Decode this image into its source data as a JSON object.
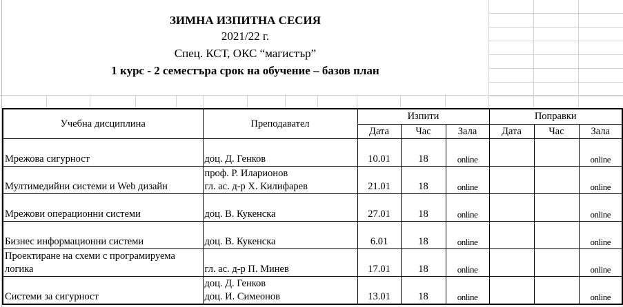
{
  "header": {
    "title": "ЗИМНА ИЗПИТНА СЕСИЯ",
    "year": "2021/22 г.",
    "specialty": "Спец. КСТ, ОКС “магистър”",
    "plan": "1 курс - 2 семестъра срок на обучение – базов план"
  },
  "table": {
    "columns": {
      "subject": "Учебна дисциплина",
      "teacher": "Преподавател",
      "exams": "Изпити",
      "retakes": "Поправки",
      "date": "Дата",
      "hour": "Час",
      "room": "Зала"
    },
    "rows": [
      {
        "subject": [
          "",
          "Мрежова сигурност"
        ],
        "teacher": [
          "",
          "доц. Д. Генков"
        ],
        "exam_date": "10.01",
        "exam_hour": "18",
        "exam_room": "online",
        "retake_date": "",
        "retake_hour": "",
        "retake_room": "online"
      },
      {
        "subject": [
          "",
          "Мултимедийни системи и Web дизайн"
        ],
        "teacher": [
          "проф. Р. Иларионов",
          "гл. ас. д-р Х. Килифарев"
        ],
        "exam_date": "21.01",
        "exam_hour": "18",
        "exam_room": "online",
        "retake_date": "",
        "retake_hour": "",
        "retake_room": "online"
      },
      {
        "subject": [
          "",
          "Мрежови операционни системи"
        ],
        "teacher": [
          "",
          "доц. В. Кукенска"
        ],
        "exam_date": "27.01",
        "exam_hour": "18",
        "exam_room": "online",
        "retake_date": "",
        "retake_hour": "",
        "retake_room": "online"
      },
      {
        "subject": [
          "",
          "Бизнес информационни системи"
        ],
        "teacher": [
          "",
          "доц. В. Кукенска"
        ],
        "exam_date": "6.01",
        "exam_hour": "18",
        "exam_room": "online",
        "retake_date": "",
        "retake_hour": "",
        "retake_room": "online"
      },
      {
        "subject": [
          "Проектиране на схеми с програмируема",
          "логика"
        ],
        "teacher": [
          "",
          "гл. ас. д-р П. Минев"
        ],
        "exam_date": "17.01",
        "exam_hour": "18",
        "exam_room": "online",
        "retake_date": "",
        "retake_hour": "",
        "retake_room": "online"
      },
      {
        "subject": [
          "",
          "Системи за сигурност"
        ],
        "teacher": [
          "доц. Д. Генков",
          "доц. И. Симеонов"
        ],
        "exam_date": "13.01",
        "exam_hour": "18",
        "exam_room": "online",
        "retake_date": "",
        "retake_hour": "",
        "retake_room": "online"
      }
    ]
  }
}
